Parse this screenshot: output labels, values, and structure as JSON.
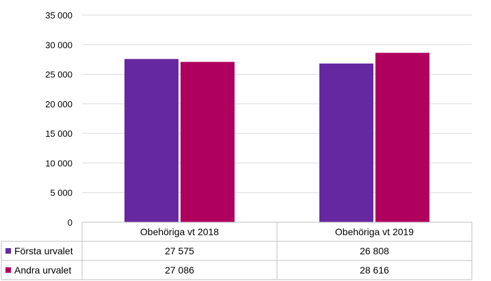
{
  "chart_data": {
    "type": "bar",
    "categories": [
      "Obehöriga vt 2018",
      "Obehöriga vt 2019"
    ],
    "series": [
      {
        "name": "Första urvalet",
        "color": "#6528a0",
        "values": [
          27575,
          26808
        ],
        "labels": [
          "27 575",
          "26 808"
        ]
      },
      {
        "name": "Andra urvalet",
        "color": "#b0005e",
        "values": [
          27086,
          28616
        ],
        "labels": [
          "27 086",
          "28 616"
        ]
      }
    ],
    "ylim": [
      0,
      35000
    ],
    "yticks": [
      0,
      5000,
      10000,
      15000,
      20000,
      25000,
      30000,
      35000
    ],
    "ytick_labels": [
      "0",
      "5 000",
      "10 000",
      "15 000",
      "20 000",
      "25 000",
      "30 000",
      "35 000"
    ],
    "grid": true,
    "legend": "data-table",
    "xlabel": "",
    "ylabel": ""
  }
}
